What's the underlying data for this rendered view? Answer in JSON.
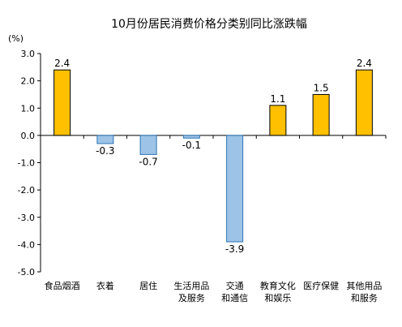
{
  "chart_data": {
    "type": "bar",
    "title": "10月份居民消费价格分类别同比涨跌幅",
    "unit": "(%)",
    "categories": [
      [
        "食品烟酒"
      ],
      [
        "衣着"
      ],
      [
        "居住"
      ],
      [
        "生活用品",
        "及服务"
      ],
      [
        "交通",
        "和通信"
      ],
      [
        "教育文化",
        "和娱乐"
      ],
      [
        "医疗保健"
      ],
      [
        "其他用品",
        "和服务"
      ]
    ],
    "values": [
      2.4,
      -0.3,
      -0.7,
      -0.1,
      -3.9,
      1.1,
      1.5,
      2.4
    ],
    "data_labels": [
      "2.4",
      "-0.3",
      "-0.7",
      "-0.1",
      "-3.9",
      "1.1",
      "1.5",
      "2.4"
    ],
    "ylim": [
      -5.0,
      3.0
    ],
    "yticks": [
      "3.0",
      "2.0",
      "1.0",
      "0.0",
      "-1.0",
      "-2.0",
      "-3.0",
      "-4.0",
      "-5.0"
    ],
    "ytick_values": [
      3,
      2,
      1,
      0,
      -1,
      -2,
      -3,
      -4,
      -5
    ],
    "grid": false,
    "legend": "none",
    "colors": {
      "positive_fill": "#FFC000",
      "positive_stroke": "#000000",
      "negative_fill": "#9DC3E6",
      "negative_stroke": "#2E75B6",
      "axis": "#000000"
    }
  }
}
